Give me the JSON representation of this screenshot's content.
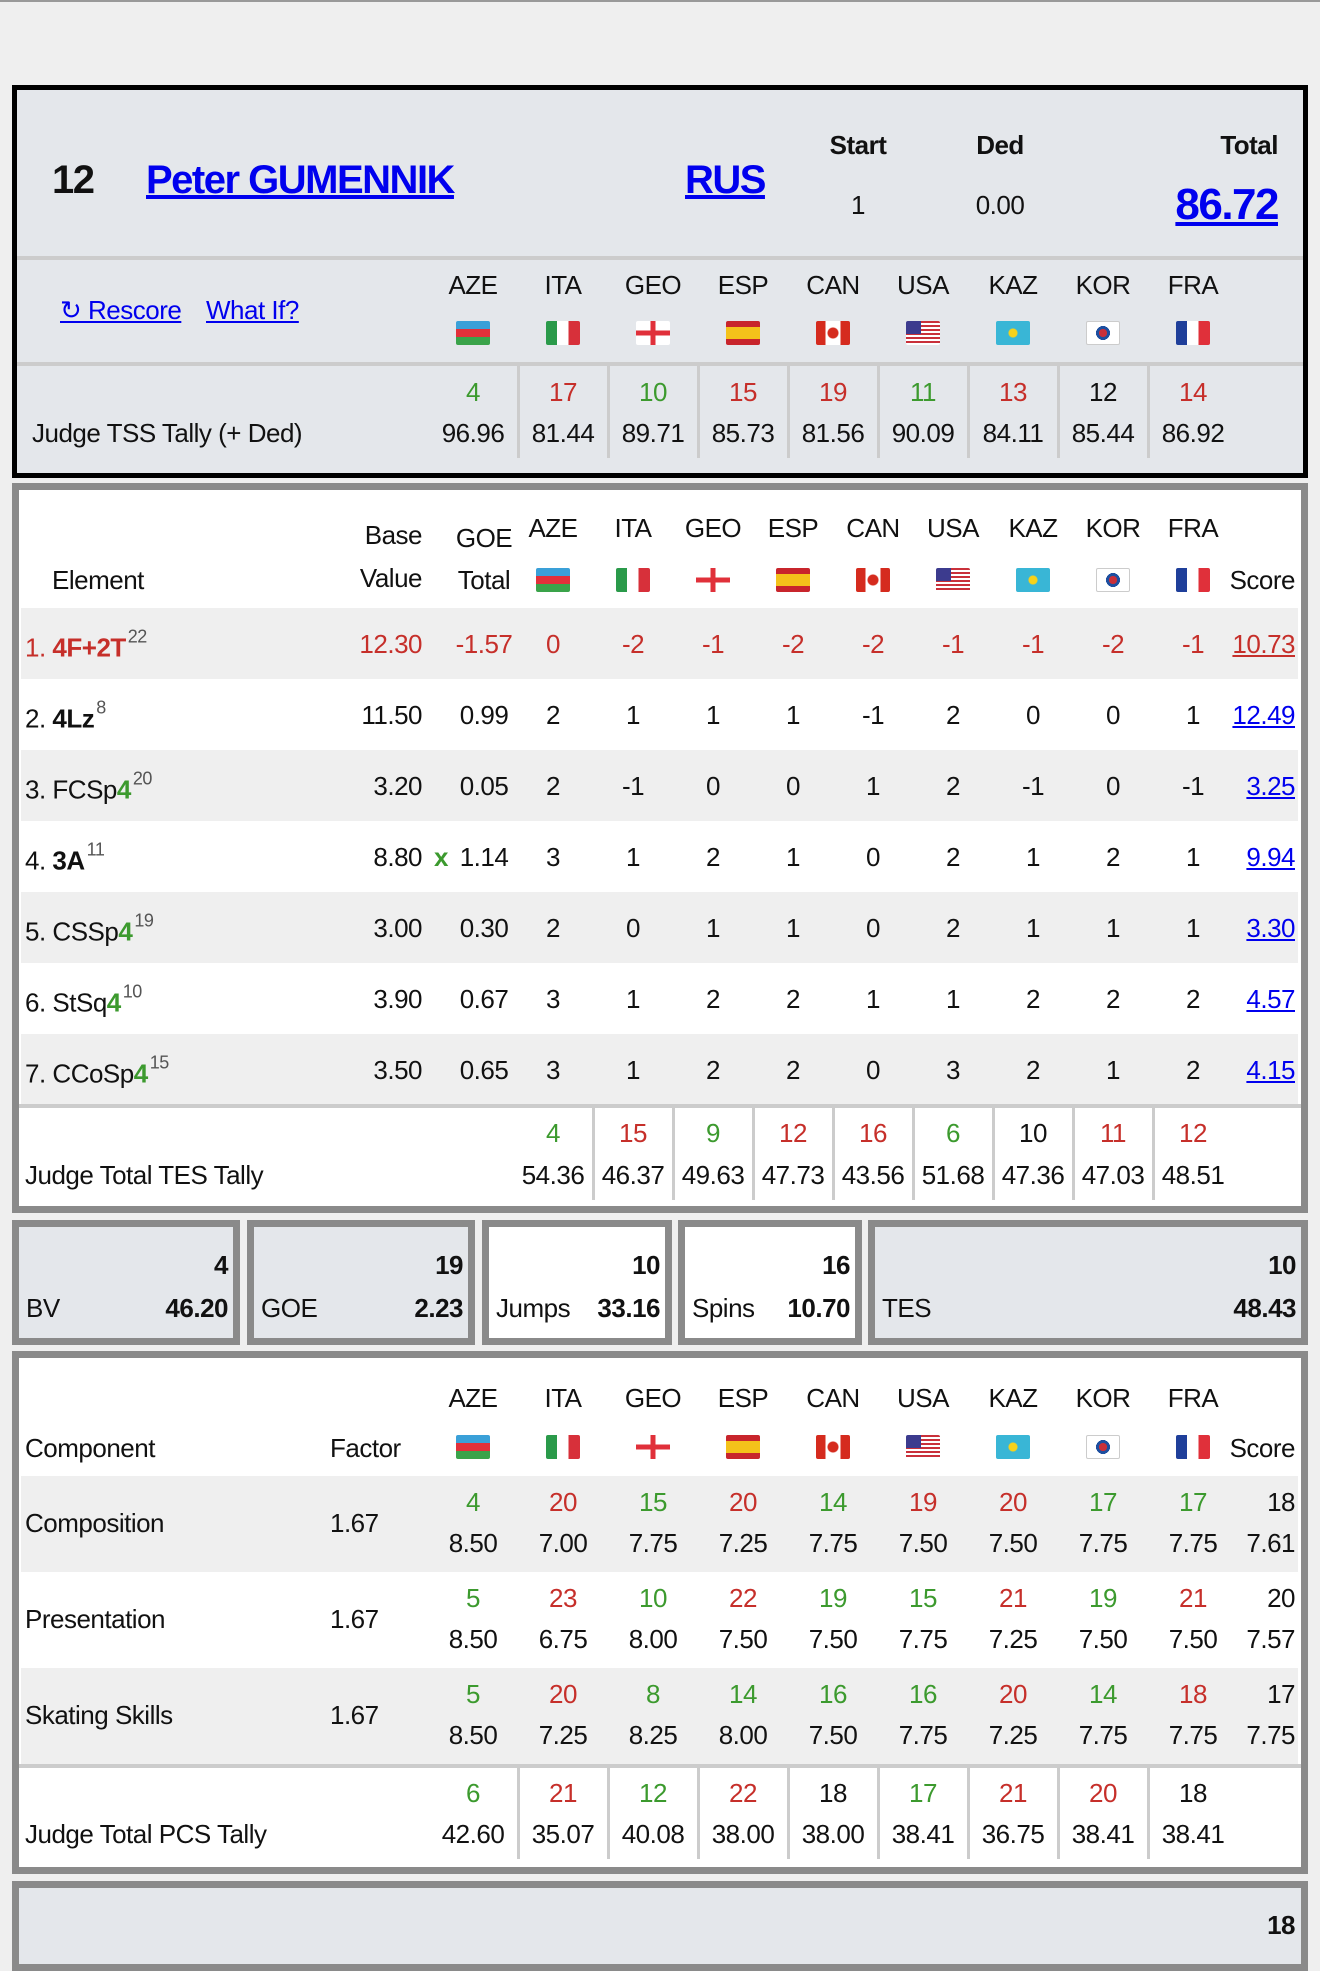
{
  "judges": [
    {
      "code": "AZE",
      "flag": "azerbaijan-flag-icon"
    },
    {
      "code": "ITA",
      "flag": "italy-flag-icon"
    },
    {
      "code": "GEO",
      "flag": "georgia-flag-icon"
    },
    {
      "code": "ESP",
      "flag": "spain-flag-icon"
    },
    {
      "code": "CAN",
      "flag": "canada-flag-icon"
    },
    {
      "code": "USA",
      "flag": "usa-flag-icon"
    },
    {
      "code": "KAZ",
      "flag": "kazakhstan-flag-icon"
    },
    {
      "code": "KOR",
      "flag": "korea-flag-icon"
    },
    {
      "code": "FRA",
      "flag": "france-flag-icon"
    }
  ],
  "colors": {
    "better": "#3c9a2e",
    "worse": "#c62f2a",
    "same": "#111111",
    "link": "#0000ee"
  },
  "header": {
    "rank": "12",
    "name": "Peter GUMENNIK",
    "nation": "RUS",
    "start_label": "Start",
    "start": "1",
    "ded_label": "Ded",
    "ded": "0.00",
    "total_label": "Total",
    "total": "86.72",
    "rescore": "↻ Rescore",
    "what_if": "What If?",
    "tally_label": "Judge TSS Tally (+ Ded)",
    "tally": [
      {
        "rank": "4",
        "score": "96.96",
        "c": "g"
      },
      {
        "rank": "17",
        "score": "81.44",
        "c": "r"
      },
      {
        "rank": "10",
        "score": "89.71",
        "c": "g"
      },
      {
        "rank": "15",
        "score": "85.73",
        "c": "r"
      },
      {
        "rank": "19",
        "score": "81.56",
        "c": "r"
      },
      {
        "rank": "11",
        "score": "90.09",
        "c": "g"
      },
      {
        "rank": "13",
        "score": "84.11",
        "c": "r"
      },
      {
        "rank": "12",
        "score": "85.44",
        "c": "n"
      },
      {
        "rank": "14",
        "score": "86.92",
        "c": "r"
      }
    ]
  },
  "elements": {
    "col_element": "Element",
    "col_base_1": "Base",
    "col_base_2": "Value",
    "col_goe_1": "GOE",
    "col_goe_2": "Total",
    "col_score": "Score",
    "rows": [
      {
        "num": "1.",
        "parts": [
          {
            "t": "4F+2T",
            "k": "b"
          }
        ],
        "sup": "22",
        "base": "12.30",
        "x": "",
        "goe": "-1.57",
        "judges": [
          "0",
          "-2",
          "-1",
          "-2",
          "-2",
          "-1",
          "-1",
          "-2",
          "-1"
        ],
        "score": "10.73",
        "flagged": true
      },
      {
        "num": "2.",
        "parts": [
          {
            "t": "4Lz",
            "k": "b"
          }
        ],
        "sup": "8",
        "base": "11.50",
        "x": "",
        "goe": "0.99",
        "judges": [
          "2",
          "1",
          "1",
          "1",
          "-1",
          "2",
          "0",
          "0",
          "1"
        ],
        "score": "12.49",
        "flagged": false
      },
      {
        "num": "3.",
        "parts": [
          {
            "t": "FCSp",
            "k": ""
          },
          {
            "t": "4",
            "k": "lvl"
          }
        ],
        "sup": "20",
        "base": "3.20",
        "x": "",
        "goe": "0.05",
        "judges": [
          "2",
          "-1",
          "0",
          "0",
          "1",
          "2",
          "-1",
          "0",
          "-1"
        ],
        "score": "3.25",
        "flagged": false
      },
      {
        "num": "4.",
        "parts": [
          {
            "t": "3A",
            "k": "b"
          }
        ],
        "sup": "11",
        "base": "8.80",
        "x": "x",
        "goe": "1.14",
        "judges": [
          "3",
          "1",
          "2",
          "1",
          "0",
          "2",
          "1",
          "2",
          "1"
        ],
        "score": "9.94",
        "flagged": false
      },
      {
        "num": "5.",
        "parts": [
          {
            "t": "CSSp",
            "k": ""
          },
          {
            "t": "4",
            "k": "lvl"
          }
        ],
        "sup": "19",
        "base": "3.00",
        "x": "",
        "goe": "0.30",
        "judges": [
          "2",
          "0",
          "1",
          "1",
          "0",
          "2",
          "1",
          "1",
          "1"
        ],
        "score": "3.30",
        "flagged": false
      },
      {
        "num": "6.",
        "parts": [
          {
            "t": "StSq",
            "k": ""
          },
          {
            "t": "4",
            "k": "lvl"
          }
        ],
        "sup": "10",
        "base": "3.90",
        "x": "",
        "goe": "0.67",
        "judges": [
          "3",
          "1",
          "2",
          "2",
          "1",
          "1",
          "2",
          "2",
          "2"
        ],
        "score": "4.57",
        "flagged": false
      },
      {
        "num": "7.",
        "parts": [
          {
            "t": "CCoSp",
            "k": ""
          },
          {
            "t": "4",
            "k": "lvl"
          }
        ],
        "sup": "15",
        "base": "3.50",
        "x": "",
        "goe": "0.65",
        "judges": [
          "3",
          "1",
          "2",
          "2",
          "0",
          "3",
          "2",
          "1",
          "2"
        ],
        "score": "4.15",
        "flagged": false
      }
    ],
    "tally_label": "Judge Total TES Tally",
    "tally": [
      {
        "rank": "4",
        "score": "54.36",
        "c": "g"
      },
      {
        "rank": "15",
        "score": "46.37",
        "c": "r"
      },
      {
        "rank": "9",
        "score": "49.63",
        "c": "g"
      },
      {
        "rank": "12",
        "score": "47.73",
        "c": "r"
      },
      {
        "rank": "16",
        "score": "43.56",
        "c": "r"
      },
      {
        "rank": "6",
        "score": "51.68",
        "c": "g"
      },
      {
        "rank": "10",
        "score": "47.36",
        "c": "n"
      },
      {
        "rank": "11",
        "score": "47.03",
        "c": "r"
      },
      {
        "rank": "12",
        "score": "48.51",
        "c": "r"
      }
    ]
  },
  "summary": [
    {
      "label": "BV",
      "rank": "4",
      "value": "46.20"
    },
    {
      "label": "GOE",
      "rank": "19",
      "value": "2.23"
    },
    {
      "label": "Jumps",
      "rank": "10",
      "value": "33.16"
    },
    {
      "label": "Spins",
      "rank": "16",
      "value": "10.70"
    },
    {
      "label": "TES",
      "rank": "10",
      "value": "48.43"
    }
  ],
  "components": {
    "col_component": "Component",
    "col_factor": "Factor",
    "col_score": "Score",
    "rows": [
      {
        "name": "Composition",
        "factor": "1.67",
        "judges": [
          {
            "rank": "4",
            "score": "8.50",
            "c": "g"
          },
          {
            "rank": "20",
            "score": "7.00",
            "c": "r"
          },
          {
            "rank": "15",
            "score": "7.75",
            "c": "g"
          },
          {
            "rank": "20",
            "score": "7.25",
            "c": "r"
          },
          {
            "rank": "14",
            "score": "7.75",
            "c": "g"
          },
          {
            "rank": "19",
            "score": "7.50",
            "c": "r"
          },
          {
            "rank": "20",
            "score": "7.50",
            "c": "r"
          },
          {
            "rank": "17",
            "score": "7.75",
            "c": "g"
          },
          {
            "rank": "17",
            "score": "7.75",
            "c": "g"
          }
        ],
        "rank": "18",
        "score": "7.61"
      },
      {
        "name": "Presentation",
        "factor": "1.67",
        "judges": [
          {
            "rank": "5",
            "score": "8.50",
            "c": "g"
          },
          {
            "rank": "23",
            "score": "6.75",
            "c": "r"
          },
          {
            "rank": "10",
            "score": "8.00",
            "c": "g"
          },
          {
            "rank": "22",
            "score": "7.50",
            "c": "r"
          },
          {
            "rank": "19",
            "score": "7.50",
            "c": "g"
          },
          {
            "rank": "15",
            "score": "7.75",
            "c": "g"
          },
          {
            "rank": "21",
            "score": "7.25",
            "c": "r"
          },
          {
            "rank": "19",
            "score": "7.50",
            "c": "g"
          },
          {
            "rank": "21",
            "score": "7.50",
            "c": "r"
          }
        ],
        "rank": "20",
        "score": "7.57"
      },
      {
        "name": "Skating Skills",
        "factor": "1.67",
        "judges": [
          {
            "rank": "5",
            "score": "8.50",
            "c": "g"
          },
          {
            "rank": "20",
            "score": "7.25",
            "c": "r"
          },
          {
            "rank": "8",
            "score": "8.25",
            "c": "g"
          },
          {
            "rank": "14",
            "score": "8.00",
            "c": "g"
          },
          {
            "rank": "16",
            "score": "7.50",
            "c": "g"
          },
          {
            "rank": "16",
            "score": "7.75",
            "c": "g"
          },
          {
            "rank": "20",
            "score": "7.25",
            "c": "r"
          },
          {
            "rank": "14",
            "score": "7.75",
            "c": "g"
          },
          {
            "rank": "18",
            "score": "7.75",
            "c": "r"
          }
        ],
        "rank": "17",
        "score": "7.75"
      }
    ],
    "tally_label": "Judge Total PCS Tally",
    "tally": [
      {
        "rank": "6",
        "score": "42.60",
        "c": "g"
      },
      {
        "rank": "21",
        "score": "35.07",
        "c": "r"
      },
      {
        "rank": "12",
        "score": "40.08",
        "c": "g"
      },
      {
        "rank": "22",
        "score": "38.00",
        "c": "r"
      },
      {
        "rank": "18",
        "score": "38.00",
        "c": "n"
      },
      {
        "rank": "17",
        "score": "38.41",
        "c": "g"
      },
      {
        "rank": "21",
        "score": "36.75",
        "c": "r"
      },
      {
        "rank": "20",
        "score": "38.41",
        "c": "r"
      },
      {
        "rank": "18",
        "score": "38.41",
        "c": "n"
      }
    ]
  },
  "next_section": {
    "rank": "18"
  }
}
